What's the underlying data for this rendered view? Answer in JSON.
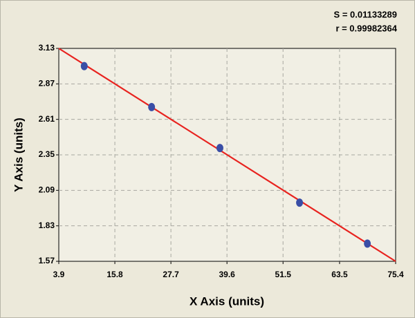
{
  "chart_data": {
    "type": "scatter",
    "annotations": [
      "S = 0.01133289",
      "r = 0.99982364"
    ],
    "xlabel": "X Axis (units)",
    "ylabel": "Y Axis (units)",
    "series": [
      {
        "color": "#3a4ea6",
        "x": [
          9.3,
          23.6,
          38.1,
          55.0,
          69.4
        ],
        "values": [
          3.0,
          2.7,
          2.4,
          2.0,
          1.7
        ]
      },
      {
        "color": "#e8231f",
        "mode": "line",
        "x": [
          3.9,
          75.4
        ],
        "values": [
          3.13,
          1.57
        ]
      }
    ],
    "xlim": [
      3.9,
      75.4
    ],
    "xticks": [
      3.9,
      15.8,
      27.7,
      39.6,
      51.5,
      63.5,
      75.4
    ],
    "ylim": [
      1.57,
      3.13
    ],
    "yticks": [
      1.57,
      1.83,
      2.09,
      2.35,
      2.61,
      2.87,
      3.13
    ],
    "grid": true
  }
}
